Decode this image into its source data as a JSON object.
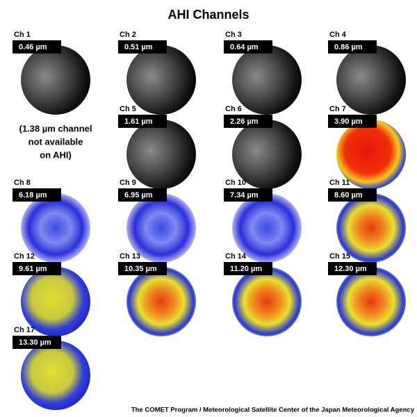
{
  "title": "AHI Channels",
  "channels": [
    {
      "label": "Ch 1",
      "wavelength": "0.46 µm"
    },
    {
      "label": "Ch 2",
      "wavelength": "0.51 µm"
    },
    {
      "label": "Ch 3",
      "wavelength": "0.64 µm"
    },
    {
      "label": "Ch 4",
      "wavelength": "0.86 µm"
    },
    {
      "label": "Ch 5",
      "wavelength": "1.61 µm"
    },
    {
      "label": "Ch 6",
      "wavelength": "2.26 µm"
    },
    {
      "label": "Ch 7",
      "wavelength": "3.90 µm"
    },
    {
      "label": "Ch 8",
      "wavelength": "6.18 µm"
    },
    {
      "label": "Ch 9",
      "wavelength": "6.95 µm"
    },
    {
      "label": "Ch 10",
      "wavelength": "7.34 µm"
    },
    {
      "label": "Ch 11",
      "wavelength": "8.60 µm"
    },
    {
      "label": "Ch 12",
      "wavelength": "9.61 µm"
    },
    {
      "label": "Ch 13",
      "wavelength": "10.35 µm"
    },
    {
      "label": "Ch 14",
      "wavelength": "11.20 µm"
    },
    {
      "label": "Ch 15",
      "wavelength": "12.30 µm"
    },
    {
      "label": "Ch 17",
      "wavelength": "13.30 µm"
    }
  ],
  "note": [
    "(1.38 µm channel",
    "not available",
    "on AHI)"
  ],
  "credit": "The COMET Program / Meteorological Satellite Center of the Japan Meteorological Agency"
}
